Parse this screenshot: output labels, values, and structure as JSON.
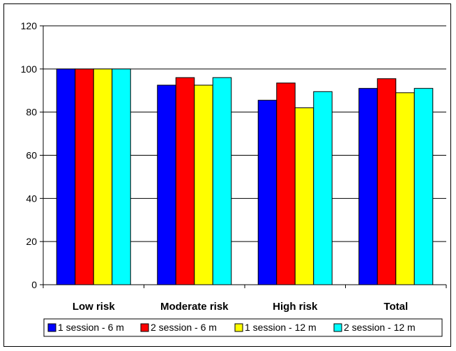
{
  "chart_data": {
    "type": "bar",
    "categories": [
      "Low risk",
      "Moderate risk",
      "High risk",
      "Total"
    ],
    "series": [
      {
        "name": "1 session - 6 m",
        "color": "#0000ff",
        "values": [
          100,
          92.5,
          85.5,
          91
        ]
      },
      {
        "name": "2 session - 6 m",
        "color": "#ff0000",
        "values": [
          100,
          96,
          93.5,
          95.5
        ]
      },
      {
        "name": "1 session - 12 m",
        "color": "#ffff00",
        "values": [
          100,
          92.5,
          82,
          89
        ]
      },
      {
        "name": "2 session - 12 m",
        "color": "#00ffff",
        "values": [
          100,
          96,
          89.5,
          91
        ]
      }
    ],
    "ylim": [
      0,
      120
    ],
    "yticks": [
      0,
      20,
      40,
      60,
      80,
      100,
      120
    ],
    "grid": true,
    "legend_position": "bottom"
  }
}
